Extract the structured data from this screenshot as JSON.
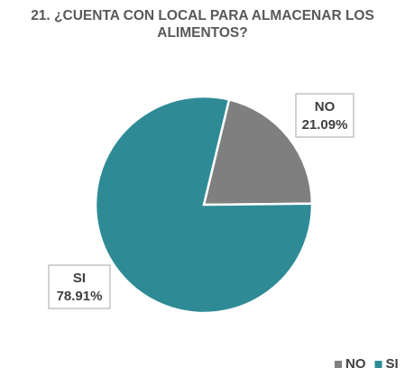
{
  "chart_data": {
    "type": "pie",
    "title": "21. ¿CUENTA CON LOCAL PARA ALMACENAR LOS ALIMENTOS?",
    "categories": [
      "NO",
      "SI"
    ],
    "values": [
      21.09,
      78.91
    ],
    "value_labels": [
      "21.09%",
      "78.91%"
    ],
    "colors": [
      "#7f7f7f",
      "#2e8b96"
    ],
    "legend": "bottom-right"
  }
}
